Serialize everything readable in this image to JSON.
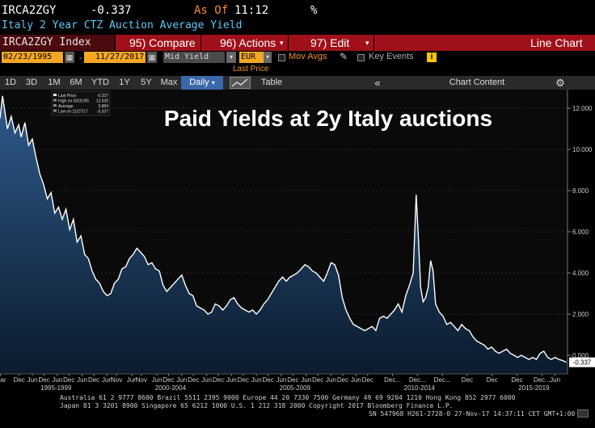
{
  "header": {
    "ticker": "IRCA2ZGY",
    "price": "-0.337",
    "as_of_label": "As Of",
    "time": "11:12",
    "percent": "%"
  },
  "description": "Italy 2 Year CTZ Auction Average Yield",
  "function_bar": {
    "ticker_field": "IRCA2ZGY Index",
    "compare": "95) Compare",
    "actions": "96) Actions",
    "edit": "97) Edit",
    "chart_type": "Line Chart"
  },
  "controls": {
    "start_date": "02/23/1995",
    "end_date": "11/27/2017",
    "field": "Mid Yield",
    "currency": "EUR",
    "mov_avgs": "Mov Avgs",
    "key_events": "Key Events",
    "info": "i"
  },
  "last_price_label": "Last Price",
  "toolbar": {
    "periods": [
      "1D",
      "3D",
      "1M",
      "6M",
      "YTD",
      "1Y",
      "5Y",
      "Max"
    ],
    "frequency": "Daily",
    "table": "Table",
    "collapse": "«",
    "chart_content": "Chart Content",
    "settings_icon": "gear-icon"
  },
  "chart_data": {
    "type": "area",
    "title": "Paid Yields at 2y Italy auctions",
    "legend": {
      "items": [
        {
          "label": "Last Price",
          "value": "-0.337"
        },
        {
          "label": "High on 03/31/95",
          "value": "12.630"
        },
        {
          "label": "Average",
          "value": "3.884"
        },
        {
          "label": "Low on 11/27/17",
          "value": "-0.337"
        }
      ]
    },
    "y_ticks": [
      "12.000",
      "10.000",
      "8.000",
      "6.000",
      "4.000",
      "2.000",
      "0.000"
    ],
    "y_tick_values": [
      12,
      10,
      8,
      6,
      4,
      2,
      0
    ],
    "ylim": [
      -0.9,
      12.9
    ],
    "xlim": [
      1995.15,
      2017.95
    ],
    "last_value_tag": "-0.337",
    "x_month_labels": [
      {
        "t": 1995.17,
        "label": "Mar"
      },
      {
        "t": 1995.92,
        "label": "Dec"
      },
      {
        "t": 1996.45,
        "label": "Jun"
      },
      {
        "t": 1996.92,
        "label": "Dec"
      },
      {
        "t": 1997.45,
        "label": "Jun"
      },
      {
        "t": 1997.92,
        "label": "Dec"
      },
      {
        "t": 1998.45,
        "label": "Jun"
      },
      {
        "t": 1998.92,
        "label": "Dec"
      },
      {
        "t": 1999.45,
        "label": "Jun"
      },
      {
        "t": 1999.83,
        "label": "Nov"
      },
      {
        "t": 2000.45,
        "label": "Jun"
      },
      {
        "t": 2000.83,
        "label": "Nov"
      },
      {
        "t": 2001.45,
        "label": "Jun"
      },
      {
        "t": 2001.92,
        "label": "Dec"
      },
      {
        "t": 2002.45,
        "label": "Jun"
      },
      {
        "t": 2002.92,
        "label": "Dec"
      },
      {
        "t": 2003.45,
        "label": "Jun"
      },
      {
        "t": 2003.92,
        "label": "Dec"
      },
      {
        "t": 2004.45,
        "label": "Jun"
      },
      {
        "t": 2004.92,
        "label": "Dec"
      },
      {
        "t": 2005.45,
        "label": "Jun"
      },
      {
        "t": 2005.92,
        "label": "Dec"
      },
      {
        "t": 2006.45,
        "label": "Jun"
      },
      {
        "t": 2006.92,
        "label": "Dec"
      },
      {
        "t": 2007.45,
        "label": "Jun"
      },
      {
        "t": 2007.92,
        "label": "Dec"
      },
      {
        "t": 2008.45,
        "label": "Jun"
      },
      {
        "t": 2008.92,
        "label": "Dec"
      },
      {
        "t": 2009.45,
        "label": "Jun"
      },
      {
        "t": 2009.92,
        "label": "Dec"
      },
      {
        "t": 2010.92,
        "label": "Dec..."
      },
      {
        "t": 2011.92,
        "label": "Dec..."
      },
      {
        "t": 2012.92,
        "label": "Dec..."
      },
      {
        "t": 2013.92,
        "label": "Dec"
      },
      {
        "t": 2014.92,
        "label": "Dec"
      },
      {
        "t": 2015.92,
        "label": "Dec"
      },
      {
        "t": 2016.92,
        "label": "Dec..."
      },
      {
        "t": 2017.45,
        "label": "Jun"
      }
    ],
    "x_period_labels": [
      {
        "t": 1997.4,
        "label": "1995-1999"
      },
      {
        "t": 2002.0,
        "label": "2000-2004"
      },
      {
        "t": 2007.0,
        "label": "2005-2009"
      },
      {
        "t": 2012.0,
        "label": "2010-2014"
      },
      {
        "t": 2016.6,
        "label": "2015-2019"
      }
    ],
    "series": [
      {
        "name": "Mid Yield",
        "points": [
          [
            1995.15,
            11.5
          ],
          [
            1995.25,
            12.6
          ],
          [
            1995.35,
            11.8
          ],
          [
            1995.45,
            11.0
          ],
          [
            1995.6,
            11.6
          ],
          [
            1995.75,
            10.8
          ],
          [
            1995.9,
            11.2
          ],
          [
            1996.0,
            10.6
          ],
          [
            1996.15,
            11.3
          ],
          [
            1996.3,
            10.2
          ],
          [
            1996.45,
            10.5
          ],
          [
            1996.6,
            9.6
          ],
          [
            1996.75,
            8.8
          ],
          [
            1996.9,
            8.3
          ],
          [
            1997.05,
            7.6
          ],
          [
            1997.2,
            7.9
          ],
          [
            1997.35,
            6.9
          ],
          [
            1997.5,
            7.2
          ],
          [
            1997.65,
            6.6
          ],
          [
            1997.8,
            7.1
          ],
          [
            1997.95,
            6.1
          ],
          [
            1998.1,
            6.6
          ],
          [
            1998.25,
            5.5
          ],
          [
            1998.4,
            5.8
          ],
          [
            1998.55,
            4.9
          ],
          [
            1998.7,
            4.7
          ],
          [
            1998.85,
            4.1
          ],
          [
            1999.0,
            3.7
          ],
          [
            1999.15,
            3.5
          ],
          [
            1999.3,
            3.1
          ],
          [
            1999.45,
            2.9
          ],
          [
            1999.6,
            3.0
          ],
          [
            1999.75,
            3.5
          ],
          [
            1999.9,
            3.7
          ],
          [
            2000.05,
            4.2
          ],
          [
            2000.2,
            4.3
          ],
          [
            2000.35,
            4.7
          ],
          [
            2000.5,
            4.9
          ],
          [
            2000.65,
            5.2
          ],
          [
            2000.8,
            5.0
          ],
          [
            2000.95,
            4.8
          ],
          [
            2001.1,
            4.4
          ],
          [
            2001.25,
            4.5
          ],
          [
            2001.4,
            4.2
          ],
          [
            2001.55,
            4.1
          ],
          [
            2001.7,
            3.4
          ],
          [
            2001.85,
            3.1
          ],
          [
            2002.0,
            3.3
          ],
          [
            2002.15,
            3.5
          ],
          [
            2002.3,
            3.7
          ],
          [
            2002.45,
            3.9
          ],
          [
            2002.6,
            3.4
          ],
          [
            2002.75,
            3.0
          ],
          [
            2002.9,
            2.9
          ],
          [
            2003.05,
            2.4
          ],
          [
            2003.2,
            2.3
          ],
          [
            2003.35,
            2.2
          ],
          [
            2003.5,
            2.0
          ],
          [
            2003.65,
            2.1
          ],
          [
            2003.8,
            2.5
          ],
          [
            2003.95,
            2.4
          ],
          [
            2004.1,
            2.2
          ],
          [
            2004.25,
            2.4
          ],
          [
            2004.4,
            2.7
          ],
          [
            2004.55,
            2.8
          ],
          [
            2004.7,
            2.5
          ],
          [
            2004.85,
            2.3
          ],
          [
            2005.0,
            2.2
          ],
          [
            2005.15,
            2.1
          ],
          [
            2005.3,
            2.2
          ],
          [
            2005.45,
            2.0
          ],
          [
            2005.6,
            2.2
          ],
          [
            2005.75,
            2.5
          ],
          [
            2005.9,
            2.7
          ],
          [
            2006.05,
            3.0
          ],
          [
            2006.2,
            3.3
          ],
          [
            2006.35,
            3.6
          ],
          [
            2006.5,
            3.8
          ],
          [
            2006.65,
            3.6
          ],
          [
            2006.8,
            3.8
          ],
          [
            2006.95,
            3.9
          ],
          [
            2007.1,
            4.0
          ],
          [
            2007.25,
            4.2
          ],
          [
            2007.4,
            4.4
          ],
          [
            2007.55,
            4.3
          ],
          [
            2007.7,
            4.1
          ],
          [
            2007.85,
            4.0
          ],
          [
            2008.0,
            3.8
          ],
          [
            2008.15,
            3.6
          ],
          [
            2008.3,
            4.0
          ],
          [
            2008.45,
            4.5
          ],
          [
            2008.6,
            4.4
          ],
          [
            2008.75,
            3.9
          ],
          [
            2008.9,
            2.8
          ],
          [
            2009.05,
            2.2
          ],
          [
            2009.2,
            1.8
          ],
          [
            2009.35,
            1.5
          ],
          [
            2009.5,
            1.4
          ],
          [
            2009.65,
            1.3
          ],
          [
            2009.8,
            1.2
          ],
          [
            2009.95,
            1.3
          ],
          [
            2010.1,
            1.4
          ],
          [
            2010.25,
            1.2
          ],
          [
            2010.4,
            1.8
          ],
          [
            2010.55,
            1.9
          ],
          [
            2010.7,
            1.8
          ],
          [
            2010.85,
            2.0
          ],
          [
            2011.0,
            2.2
          ],
          [
            2011.15,
            2.5
          ],
          [
            2011.3,
            2.1
          ],
          [
            2011.45,
            2.9
          ],
          [
            2011.6,
            3.4
          ],
          [
            2011.75,
            4.0
          ],
          [
            2011.87,
            7.8
          ],
          [
            2011.95,
            5.9
          ],
          [
            2012.05,
            3.3
          ],
          [
            2012.15,
            2.6
          ],
          [
            2012.25,
            2.8
          ],
          [
            2012.35,
            3.3
          ],
          [
            2012.45,
            4.6
          ],
          [
            2012.55,
            4.1
          ],
          [
            2012.65,
            2.5
          ],
          [
            2012.8,
            2.1
          ],
          [
            2012.95,
            1.9
          ],
          [
            2013.1,
            1.5
          ],
          [
            2013.25,
            1.6
          ],
          [
            2013.4,
            1.4
          ],
          [
            2013.55,
            1.2
          ],
          [
            2013.7,
            1.5
          ],
          [
            2013.85,
            1.3
          ],
          [
            2014.0,
            1.2
          ],
          [
            2014.15,
            0.9
          ],
          [
            2014.3,
            0.7
          ],
          [
            2014.45,
            0.6
          ],
          [
            2014.6,
            0.5
          ],
          [
            2014.75,
            0.3
          ],
          [
            2014.9,
            0.4
          ],
          [
            2015.05,
            0.2
          ],
          [
            2015.2,
            0.1
          ],
          [
            2015.35,
            0.2
          ],
          [
            2015.5,
            0.3
          ],
          [
            2015.65,
            0.1
          ],
          [
            2015.8,
            0.0
          ],
          [
            2015.95,
            -0.1
          ],
          [
            2016.1,
            0.0
          ],
          [
            2016.25,
            -0.1
          ],
          [
            2016.4,
            -0.2
          ],
          [
            2016.55,
            -0.1
          ],
          [
            2016.7,
            -0.2
          ],
          [
            2016.85,
            0.1
          ],
          [
            2017.0,
            0.2
          ],
          [
            2017.15,
            -0.1
          ],
          [
            2017.3,
            -0.2
          ],
          [
            2017.45,
            -0.1
          ],
          [
            2017.6,
            -0.2
          ],
          [
            2017.75,
            -0.25
          ],
          [
            2017.9,
            -0.337
          ]
        ]
      }
    ]
  },
  "footer": {
    "line1": "Australia 61 2 9777 8600 Brazil 5511 2395 9000 Europe 44 20 7330 7500 Germany 49 69 9204 1210 Hong Kong 852 2977 6000",
    "line2": "Japan 81 3 3201 8900       Singapore 65 6212 1000       U.S. 1 212 318 2000         Copyright 2017 Bloomberg Finance L.P.",
    "line3": "SN 547968 H261-2728-0 27-Nov-17 14:37:11 CET  GMT+1:00"
  },
  "colors": {
    "accent_orange": "#f28c28",
    "bar_red": "#a0101a",
    "area_top": "#2e5b8c",
    "area_bottom": "#0b1a2c",
    "line": "#ffffff"
  }
}
